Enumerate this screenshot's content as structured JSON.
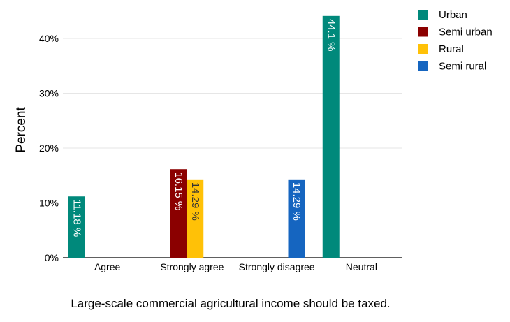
{
  "chart_data": {
    "type": "bar",
    "xlabel": "Large-scale commercial agricultural income should be taxed.",
    "ylabel": "Percent",
    "ylim": [
      0,
      45
    ],
    "yticks": [
      0,
      10,
      20,
      30,
      40
    ],
    "ytick_labels": [
      "0%",
      "10%",
      "20%",
      "30%",
      "40%"
    ],
    "categories": [
      "Agree",
      "Strongly agree",
      "Strongly disagree",
      "Neutral"
    ],
    "series": [
      {
        "name": "Urban",
        "color": "#00897b",
        "values": [
          11.18,
          null,
          null,
          44.1
        ],
        "labels": [
          "11.18 %",
          null,
          null,
          "44.1 %"
        ],
        "label_color": "#ffffff"
      },
      {
        "name": "Semi urban",
        "color": "#8b0000",
        "values": [
          null,
          16.15,
          null,
          null
        ],
        "labels": [
          null,
          "16.15 %",
          null,
          null
        ],
        "label_color": "#ffffff"
      },
      {
        "name": "Rural",
        "color": "#ffc107",
        "values": [
          null,
          14.29,
          null,
          null
        ],
        "labels": [
          null,
          "14.29 %",
          null,
          null
        ],
        "label_color": "#333333"
      },
      {
        "name": "Semi rural",
        "color": "#1565c0",
        "values": [
          null,
          null,
          14.29,
          null
        ],
        "labels": [
          null,
          null,
          "14.29 %",
          null
        ],
        "label_color": "#ffffff"
      }
    ],
    "grid": true,
    "legend_position": "top-right"
  }
}
